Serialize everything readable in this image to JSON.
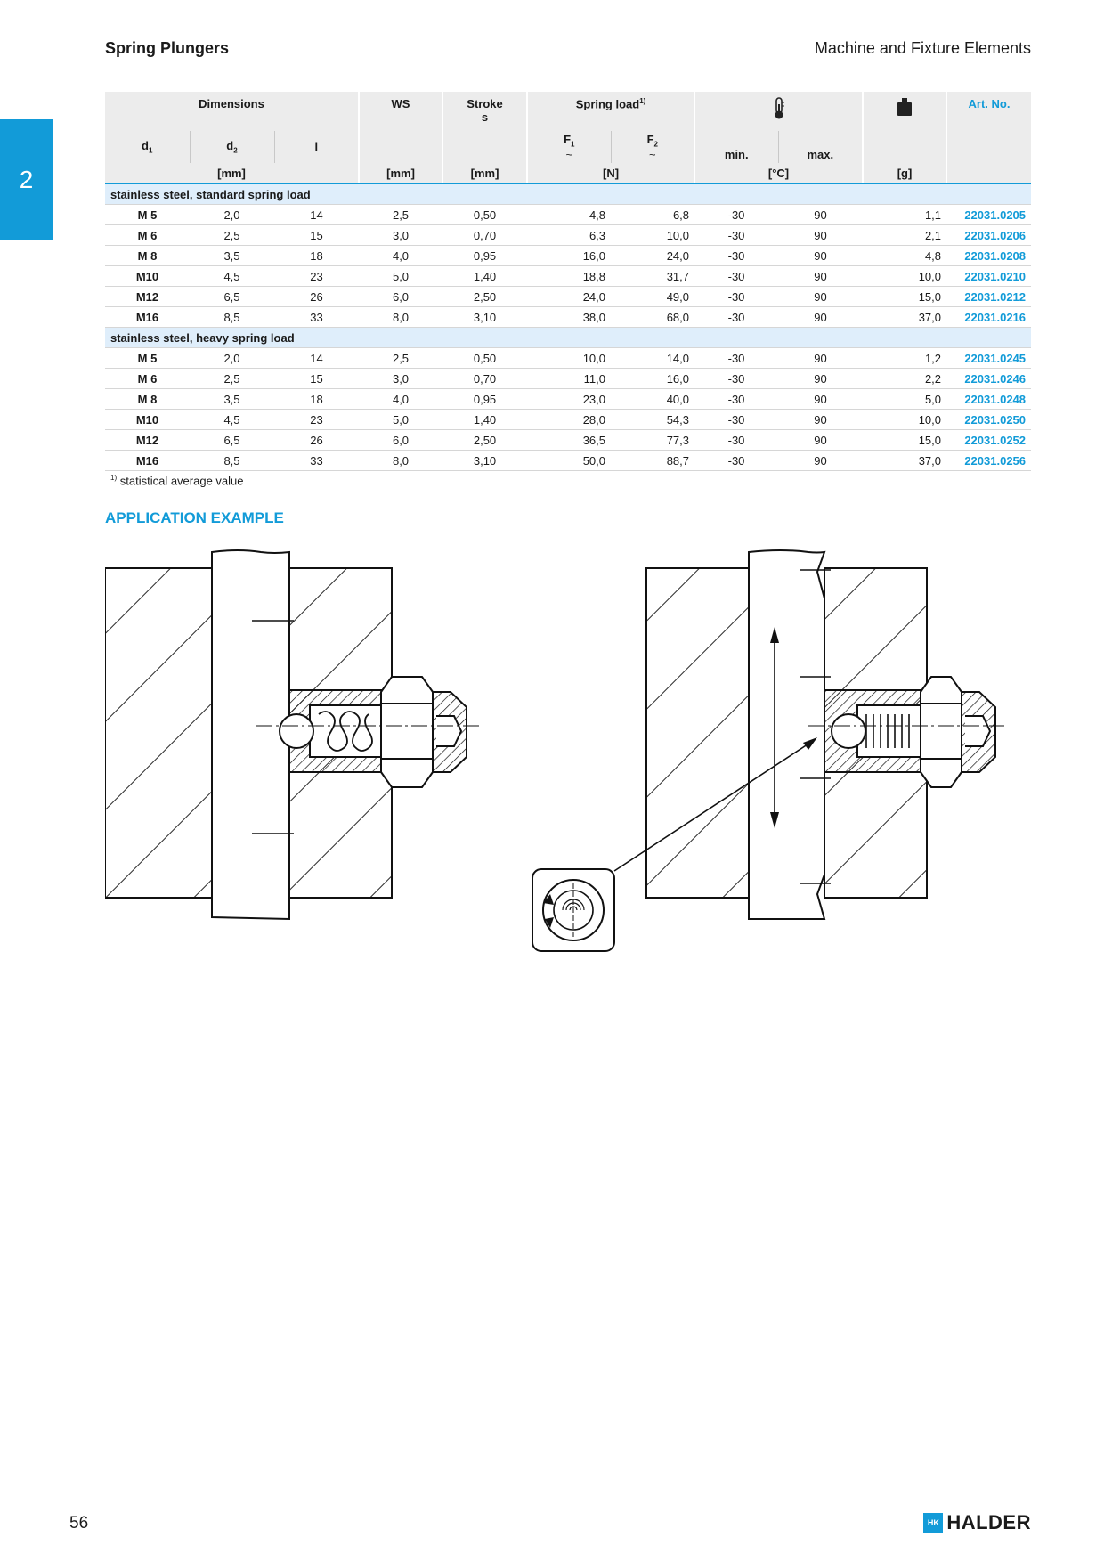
{
  "header": {
    "left_title": "Spring Plungers",
    "right_title": "Machine and Fixture Elements"
  },
  "chapter_tab": "2",
  "table": {
    "h_dimensions": "Dimensions",
    "h_ws": "WS",
    "h_stroke": "Stroke",
    "h_stroke_sym": "s",
    "h_spring_load": "Spring load",
    "h_spring_sup": "1)",
    "h_temp_icon": "thermometer-icon",
    "h_weight_icon": "weight-icon",
    "h_artno": "Art. No.",
    "h_d": "d",
    "h_d1_sub": "1",
    "h_d2_sub": "2",
    "h_l": "l",
    "h_f": "F",
    "h_f1_sub": "1",
    "h_f2_sub": "2",
    "h_approx": "~",
    "h_min": "min.",
    "h_max": "max.",
    "u_mm": "[mm]",
    "u_n": "[N]",
    "u_c": "[°C]",
    "u_g": "[g]",
    "groups": [
      {
        "title": "stainless steel, standard spring load",
        "rows": [
          [
            "M  5",
            "2,0",
            "14",
            "2,5",
            "0,50",
            "4,8",
            "6,8",
            "-30",
            "90",
            "1,1",
            "22031.0205"
          ],
          [
            "M  6",
            "2,5",
            "15",
            "3,0",
            "0,70",
            "6,3",
            "10,0",
            "-30",
            "90",
            "2,1",
            "22031.0206"
          ],
          [
            "M  8",
            "3,5",
            "18",
            "4,0",
            "0,95",
            "16,0",
            "24,0",
            "-30",
            "90",
            "4,8",
            "22031.0208"
          ],
          [
            "M10",
            "4,5",
            "23",
            "5,0",
            "1,40",
            "18,8",
            "31,7",
            "-30",
            "90",
            "10,0",
            "22031.0210"
          ],
          [
            "M12",
            "6,5",
            "26",
            "6,0",
            "2,50",
            "24,0",
            "49,0",
            "-30",
            "90",
            "15,0",
            "22031.0212"
          ],
          [
            "M16",
            "8,5",
            "33",
            "8,0",
            "3,10",
            "38,0",
            "68,0",
            "-30",
            "90",
            "37,0",
            "22031.0216"
          ]
        ]
      },
      {
        "title": "stainless steel, heavy spring load",
        "rows": [
          [
            "M  5",
            "2,0",
            "14",
            "2,5",
            "0,50",
            "10,0",
            "14,0",
            "-30",
            "90",
            "1,2",
            "22031.0245"
          ],
          [
            "M  6",
            "2,5",
            "15",
            "3,0",
            "0,70",
            "11,0",
            "16,0",
            "-30",
            "90",
            "2,2",
            "22031.0246"
          ],
          [
            "M  8",
            "3,5",
            "18",
            "4,0",
            "0,95",
            "23,0",
            "40,0",
            "-30",
            "90",
            "5,0",
            "22031.0248"
          ],
          [
            "M10",
            "4,5",
            "23",
            "5,0",
            "1,40",
            "28,0",
            "54,3",
            "-30",
            "90",
            "10,0",
            "22031.0250"
          ],
          [
            "M12",
            "6,5",
            "26",
            "6,0",
            "2,50",
            "36,5",
            "77,3",
            "-30",
            "90",
            "15,0",
            "22031.0252"
          ],
          [
            "M16",
            "8,5",
            "33",
            "8,0",
            "3,10",
            "50,0",
            "88,7",
            "-30",
            "90",
            "37,0",
            "22031.0256"
          ]
        ]
      }
    ]
  },
  "footnote": {
    "marker": "1)",
    "text": "statistical average value"
  },
  "section_title": "APPLICATION EXAMPLE",
  "footer": {
    "page_number": "56",
    "logo_mark": "HK",
    "logo_text": "HALDER"
  }
}
